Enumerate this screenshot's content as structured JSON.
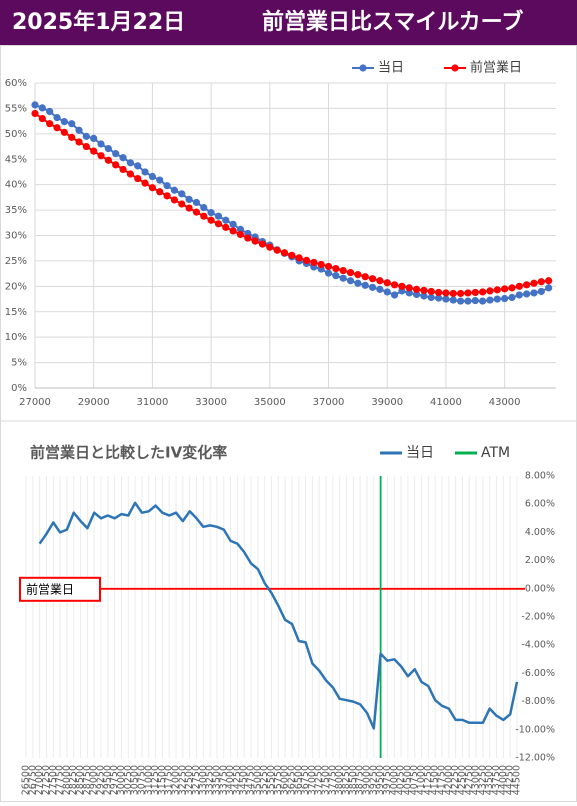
{
  "header": {
    "date": "2025年1月22日",
    "title": "前営業日比スマイルカーブ"
  },
  "chart_data": [
    {
      "type": "line",
      "markers": true,
      "x": [
        27000,
        27250,
        27500,
        27750,
        28000,
        28250,
        28500,
        28750,
        29000,
        29250,
        29500,
        29750,
        30000,
        30250,
        30500,
        30750,
        31000,
        31250,
        31500,
        31750,
        32000,
        32250,
        32500,
        32750,
        33000,
        33250,
        33500,
        33750,
        34000,
        34250,
        34500,
        34750,
        35000,
        35250,
        35500,
        35750,
        36000,
        36250,
        36500,
        36750,
        37000,
        37250,
        37500,
        37750,
        38000,
        38250,
        38500,
        38750,
        39000,
        39250,
        39500,
        39750,
        40000,
        40250,
        40500,
        40750,
        41000,
        41250,
        41500,
        41750,
        42000,
        42250,
        42500,
        42750,
        43000,
        43250,
        43500,
        43750,
        44000,
        44250,
        44500
      ],
      "series": [
        {
          "name": "当日",
          "color": "#4472c4",
          "values": [
            55.7,
            55.1,
            54.4,
            53.2,
            52.4,
            52.0,
            50.7,
            49.5,
            49.1,
            48.0,
            47.1,
            46.1,
            45.3,
            44.3,
            43.7,
            42.5,
            41.6,
            40.9,
            39.8,
            38.9,
            38.2,
            37.1,
            36.5,
            35.5,
            34.5,
            33.8,
            33.0,
            32.2,
            31.2,
            30.4,
            29.7,
            28.8,
            28.1,
            27.2,
            26.5,
            25.8,
            25.0,
            24.5,
            23.8,
            23.4,
            22.6,
            22.1,
            21.6,
            21.1,
            20.6,
            20.2,
            19.8,
            19.4,
            18.9,
            18.3,
            19.1,
            18.7,
            18.4,
            18.1,
            17.8,
            17.7,
            17.5,
            17.3,
            17.1,
            17.1,
            17.2,
            17.1,
            17.3,
            17.5,
            17.6,
            17.8,
            18.3,
            18.5,
            18.7,
            19.0,
            19.7
          ]
        },
        {
          "name": "前営業日",
          "color": "#ff0000",
          "values": [
            54.0,
            53.0,
            52.0,
            51.2,
            50.3,
            49.3,
            48.4,
            47.5,
            46.6,
            45.7,
            44.8,
            43.9,
            43.0,
            42.1,
            41.2,
            40.3,
            39.4,
            38.6,
            37.8,
            37.0,
            36.2,
            35.4,
            34.6,
            33.8,
            33.0,
            32.3,
            31.6,
            30.9,
            30.2,
            29.5,
            28.9,
            28.3,
            27.7,
            27.1,
            26.6,
            26.1,
            25.6,
            25.1,
            24.7,
            24.3,
            23.9,
            23.5,
            23.1,
            22.7,
            22.3,
            21.9,
            21.5,
            21.1,
            20.7,
            20.3,
            20.0,
            19.7,
            19.4,
            19.2,
            19.0,
            18.8,
            18.7,
            18.6,
            18.6,
            18.7,
            18.8,
            18.9,
            19.1,
            19.3,
            19.5,
            19.7,
            20.0,
            20.3,
            20.6,
            20.9,
            21.1
          ]
        }
      ],
      "xlim": [
        27000,
        44750
      ],
      "xticks": [
        27000,
        29000,
        31000,
        33000,
        35000,
        37000,
        39000,
        41000,
        43000
      ],
      "ylim": [
        0,
        60
      ],
      "yticks": [
        {
          "value": 0,
          "label": "0%"
        },
        {
          "value": 5,
          "label": "5%"
        },
        {
          "value": 10,
          "label": "10%"
        },
        {
          "value": 15,
          "label": "15%"
        },
        {
          "value": 20,
          "label": "20%"
        },
        {
          "value": 25,
          "label": "25%"
        },
        {
          "value": 30,
          "label": "30%"
        },
        {
          "value": 35,
          "label": "35%"
        },
        {
          "value": 40,
          "label": "40%"
        },
        {
          "value": 45,
          "label": "45%"
        },
        {
          "value": 50,
          "label": "50%"
        },
        {
          "value": 55,
          "label": "55%"
        },
        {
          "value": 60,
          "label": "60%"
        }
      ],
      "grid": {
        "x": true,
        "y": true
      },
      "y_axis_side": "left",
      "legend": "top-right"
    },
    {
      "type": "line",
      "markers": false,
      "title": "前営業日と比較したIV変化率",
      "x": [
        27000,
        27250,
        27500,
        27750,
        28000,
        28250,
        28500,
        28750,
        29000,
        29250,
        29500,
        29750,
        30000,
        30250,
        30500,
        30750,
        31000,
        31250,
        31500,
        31750,
        32000,
        32250,
        32500,
        32750,
        33000,
        33250,
        33500,
        33750,
        34000,
        34250,
        34500,
        34750,
        35000,
        35250,
        35500,
        35750,
        36000,
        36250,
        36500,
        36750,
        37000,
        37250,
        37500,
        37750,
        38000,
        38250,
        38500,
        38750,
        39000,
        39250,
        39500,
        39750,
        40000,
        40250,
        40500,
        40750,
        41000,
        41250,
        41500,
        41750,
        42000,
        42250,
        42500,
        42750,
        43000,
        43250,
        43500,
        43750,
        44000,
        44250,
        44500
      ],
      "series": [
        {
          "name": "当日",
          "color": "#2e75b6",
          "values": [
            3.2,
            3.9,
            4.7,
            4.0,
            4.2,
            5.4,
            4.8,
            4.3,
            5.4,
            5.0,
            5.2,
            5.0,
            5.3,
            5.2,
            6.1,
            5.4,
            5.5,
            5.9,
            5.4,
            5.2,
            5.4,
            4.8,
            5.5,
            5.0,
            4.4,
            4.5,
            4.4,
            4.2,
            3.4,
            3.2,
            2.6,
            1.8,
            1.4,
            0.4,
            -0.3,
            -1.2,
            -2.2,
            -2.5,
            -3.7,
            -3.8,
            -5.3,
            -5.8,
            -6.5,
            -7.0,
            -7.8,
            -7.9,
            -8.0,
            -8.2,
            -8.8,
            -9.9,
            -4.6,
            -5.1,
            -5.0,
            -5.5,
            -6.2,
            -5.7,
            -6.6,
            -6.9,
            -7.9,
            -8.3,
            -8.5,
            -9.3,
            -9.3,
            -9.5,
            -9.5,
            -9.5,
            -8.5,
            -9.0,
            -9.3,
            -8.9,
            -6.6
          ]
        }
      ],
      "vlines": [
        {
          "name": "ATM",
          "x": 39500,
          "color": "#00b050"
        }
      ],
      "reference_lines": [
        {
          "label": "前営業日",
          "y": 0,
          "color": "#ff0000"
        }
      ],
      "xlim": [
        26500,
        44500
      ],
      "xticks": [
        26500,
        26750,
        27000,
        27250,
        27500,
        27750,
        28000,
        28250,
        28500,
        28750,
        29000,
        29250,
        29500,
        29750,
        30000,
        30250,
        30500,
        30750,
        31000,
        31250,
        31500,
        31750,
        32000,
        32250,
        32500,
        32750,
        33000,
        33250,
        33500,
        33750,
        34000,
        34250,
        34500,
        34750,
        35000,
        35250,
        35500,
        35750,
        36000,
        36250,
        36500,
        36750,
        37000,
        37250,
        37500,
        37750,
        38000,
        38250,
        38500,
        38750,
        39000,
        39250,
        39500,
        39750,
        40000,
        40250,
        40500,
        40750,
        41000,
        41250,
        41500,
        41750,
        42000,
        42250,
        42500,
        42750,
        43000,
        43250,
        43500,
        43750,
        44000,
        44250,
        44500
      ],
      "ylim": [
        -12,
        8
      ],
      "yticks": [
        {
          "value": -12,
          "label": "-12.00%"
        },
        {
          "value": -10,
          "label": "-10.00%"
        },
        {
          "value": -8,
          "label": "-8.00%"
        },
        {
          "value": -6,
          "label": "-6.00%"
        },
        {
          "value": -4,
          "label": "-4.00%"
        },
        {
          "value": -2,
          "label": "-2.00%"
        },
        {
          "value": 0,
          "label": "0.00%"
        },
        {
          "value": 2,
          "label": "2.00%"
        },
        {
          "value": 4,
          "label": "4.00%"
        },
        {
          "value": 6,
          "label": "6.00%"
        },
        {
          "value": 8,
          "label": "8.00%"
        }
      ],
      "grid": {
        "x": true,
        "y": false
      },
      "y_axis_side": "right",
      "legend": "top-right"
    }
  ]
}
